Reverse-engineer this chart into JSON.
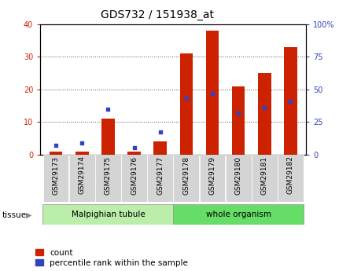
{
  "title": "GDS732 / 151938_at",
  "samples": [
    "GSM29173",
    "GSM29174",
    "GSM29175",
    "GSM29176",
    "GSM29177",
    "GSM29178",
    "GSM29179",
    "GSM29180",
    "GSM29181",
    "GSM29182"
  ],
  "counts": [
    1,
    1,
    11,
    1,
    4,
    31,
    38,
    21,
    25,
    33
  ],
  "percentiles": [
    7,
    9,
    35,
    5,
    17,
    43,
    47,
    32,
    36,
    41
  ],
  "n_malpighian": 5,
  "left_ylim": [
    0,
    40
  ],
  "right_ylim": [
    0,
    100
  ],
  "left_yticks": [
    0,
    10,
    20,
    30,
    40
  ],
  "right_yticks": [
    0,
    25,
    50,
    75,
    100
  ],
  "bar_color": "#cc2200",
  "dot_color": "#3344bb",
  "bar_width": 0.5,
  "malpighian_bg": "#bbeeaa",
  "whole_organism_bg": "#66dd66",
  "sample_bg": "#d4d4d4",
  "title_fontsize": 10,
  "tick_fontsize": 7,
  "legend_fontsize": 7.5
}
